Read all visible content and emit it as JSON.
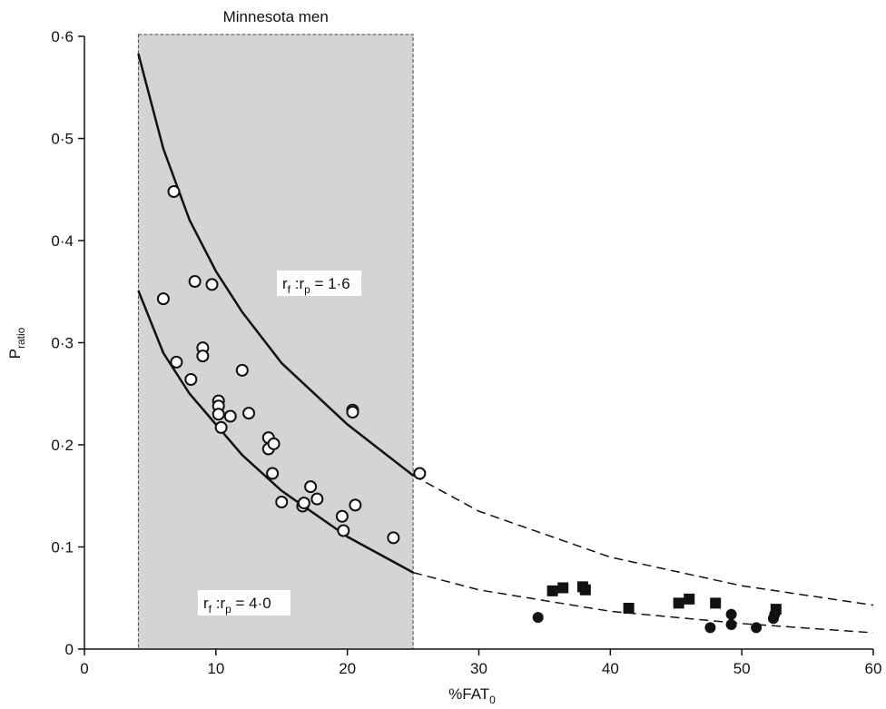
{
  "chart_data": {
    "type": "scatter",
    "region": {
      "label": "Minnesota men",
      "xlim": [
        4.1,
        25.0
      ],
      "color": "#d4d4d4"
    },
    "x_label": {
      "text": "%FAT",
      "sub": "0"
    },
    "y_label": {
      "text": "P",
      "sub": "ratio"
    },
    "xlim": [
      0,
      60
    ],
    "ylim": [
      0,
      0.6
    ],
    "xticks": [
      0,
      10,
      20,
      30,
      40,
      50,
      60
    ],
    "yticks": [
      0,
      {
        "value": 0.1,
        "label": "0·1"
      },
      {
        "value": 0.2,
        "label": "0·2"
      },
      {
        "value": 0.3,
        "label": "0·3"
      },
      {
        "value": 0.4,
        "label": "0·4"
      },
      {
        "value": 0.5,
        "label": "0·5"
      },
      {
        "value": 0.6,
        "label": "0·6"
      }
    ],
    "curves": [
      {
        "style": "solid",
        "x": [
          4.1,
          6,
          8,
          10,
          12,
          15,
          20,
          25
        ],
        "values": [
          0.583,
          0.49,
          0.42,
          0.37,
          0.33,
          0.28,
          0.22,
          0.17
        ]
      },
      {
        "style": "dashed",
        "x": [
          25,
          30,
          40,
          50,
          60
        ],
        "values": [
          0.17,
          0.135,
          0.09,
          0.062,
          0.043
        ]
      },
      {
        "style": "solid",
        "x": [
          4.1,
          6,
          8,
          10,
          12,
          15,
          20,
          25
        ],
        "values": [
          0.351,
          0.29,
          0.25,
          0.22,
          0.19,
          0.155,
          0.11,
          0.075
        ]
      },
      {
        "style": "dashed",
        "x": [
          25,
          30,
          40,
          50,
          60
        ],
        "values": [
          0.075,
          0.058,
          0.037,
          0.025,
          0.016
        ]
      }
    ],
    "series": [
      {
        "marker": "open-circle",
        "color": "#111111",
        "x": [
          6.0,
          6.8,
          7.0,
          8.1,
          8.4,
          9.0,
          9.0,
          9.7,
          10.2,
          10.2,
          10.2,
          10.4,
          11.1,
          12.0,
          12.5,
          14.0,
          14.0,
          14.4,
          14.3,
          15.0,
          16.6,
          16.7,
          17.2,
          17.7,
          19.6,
          19.7,
          20.4,
          20.4,
          20.6,
          23.5,
          25.5
        ],
        "values": [
          0.343,
          0.448,
          0.281,
          0.264,
          0.36,
          0.295,
          0.287,
          0.357,
          0.243,
          0.238,
          0.23,
          0.217,
          0.228,
          0.273,
          0.231,
          0.207,
          0.196,
          0.201,
          0.172,
          0.144,
          0.14,
          0.143,
          0.159,
          0.147,
          0.13,
          0.116,
          0.234,
          0.232,
          0.141,
          0.109,
          0.172
        ]
      },
      {
        "marker": "square",
        "color": "#111111",
        "x": [
          35.6,
          36.4,
          37.9,
          38.1,
          41.4,
          45.2,
          46.0,
          48.0,
          52.6
        ],
        "values": [
          0.057,
          0.06,
          0.061,
          0.058,
          0.04,
          0.045,
          0.049,
          0.045,
          0.039
        ]
      },
      {
        "marker": "filled-circle",
        "color": "#111111",
        "x": [
          34.5,
          47.6,
          49.2,
          49.2,
          51.1,
          52.4,
          52.5
        ],
        "values": [
          0.031,
          0.021,
          0.024,
          0.034,
          0.021,
          0.03,
          0.034
        ]
      }
    ],
    "annotations": [
      {
        "segments": [
          {
            "text": "r"
          },
          {
            "text": "f",
            "sub": true
          },
          {
            "text": " :r"
          },
          {
            "text": "p",
            "sub": true
          },
          {
            "text": " = 1·6"
          }
        ]
      },
      {
        "segments": [
          {
            "text": "r"
          },
          {
            "text": "f",
            "sub": true
          },
          {
            "text": " :r"
          },
          {
            "text": "p",
            "sub": true
          },
          {
            "text": " = 4·0"
          }
        ]
      }
    ]
  }
}
